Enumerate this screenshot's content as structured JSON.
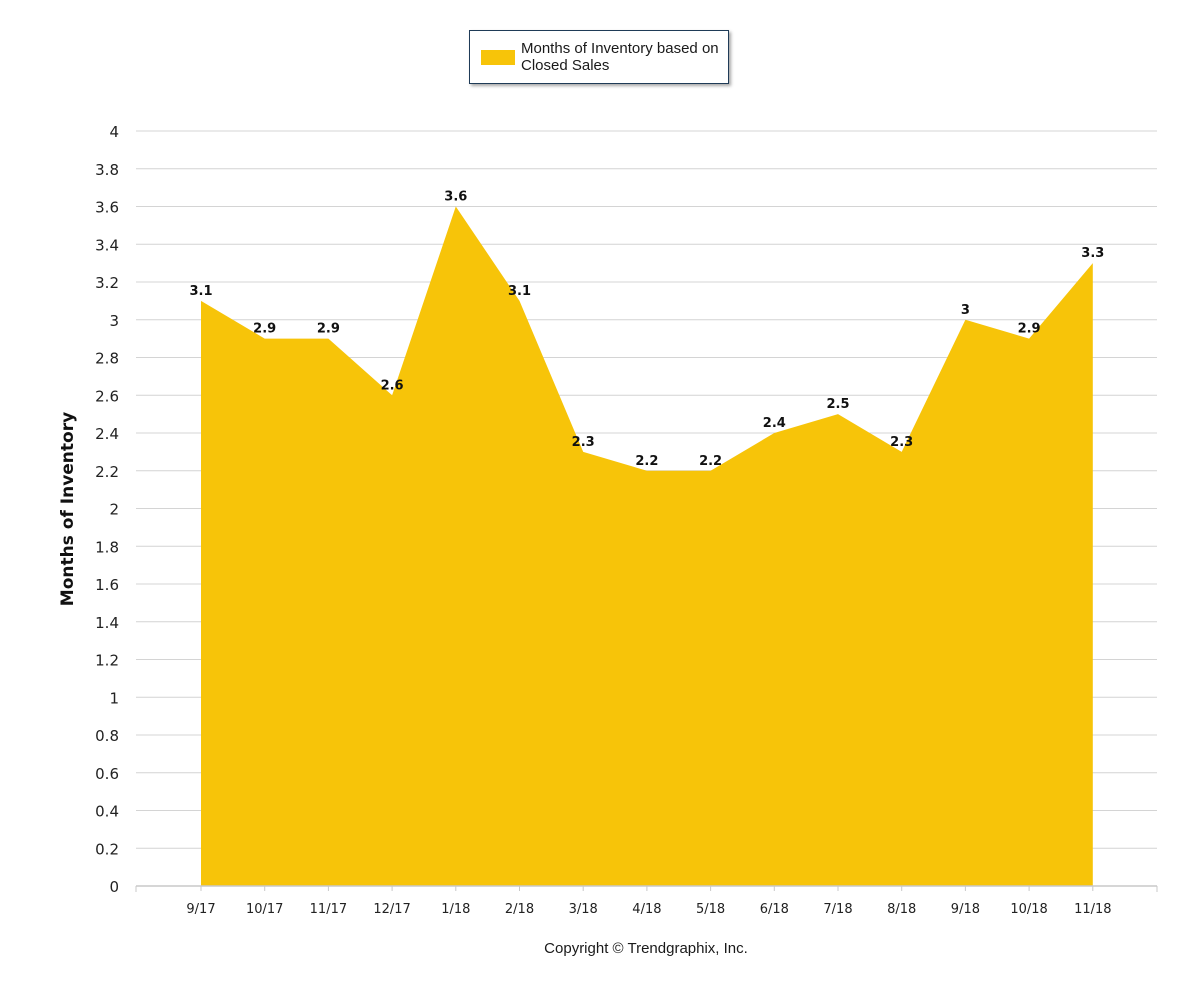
{
  "chart_data": {
    "type": "area",
    "categories": [
      "9/17",
      "10/17",
      "11/17",
      "12/17",
      "1/18",
      "2/18",
      "3/18",
      "4/18",
      "5/18",
      "6/18",
      "7/18",
      "8/18",
      "9/18",
      "10/18",
      "11/18"
    ],
    "series": [
      {
        "name": "Months of Inventory based on Closed Sales",
        "values": [
          3.1,
          2.9,
          2.9,
          2.6,
          3.6,
          3.1,
          2.3,
          2.2,
          2.2,
          2.4,
          2.5,
          2.3,
          3.0,
          2.9,
          3.3
        ]
      }
    ],
    "data_labels": [
      "3.1",
      "2.9",
      "2.9",
      "2.6",
      "3.6",
      "3.1",
      "2.3",
      "2.2",
      "2.2",
      "2.4",
      "2.5",
      "2.3",
      "3",
      "2.9",
      "3.3"
    ],
    "ylabel": "Months of Inventory",
    "xlabel": "",
    "ylim": [
      0,
      4
    ],
    "ytick_labels": [
      "0",
      "0.2",
      "0.4",
      "0.6",
      "0.8",
      "1",
      "1.2",
      "1.4",
      "1.6",
      "1.8",
      "2",
      "2.2",
      "2.4",
      "2.6",
      "2.8",
      "3",
      "3.2",
      "3.4",
      "3.6",
      "3.8",
      "4"
    ],
    "grid": true,
    "legend_position": "top-center",
    "color": "#f7c409"
  },
  "legend": {
    "label": "Months of Inventory based on Closed Sales"
  },
  "footer": {
    "copyright": "Copyright © Trendgraphix, Inc."
  }
}
